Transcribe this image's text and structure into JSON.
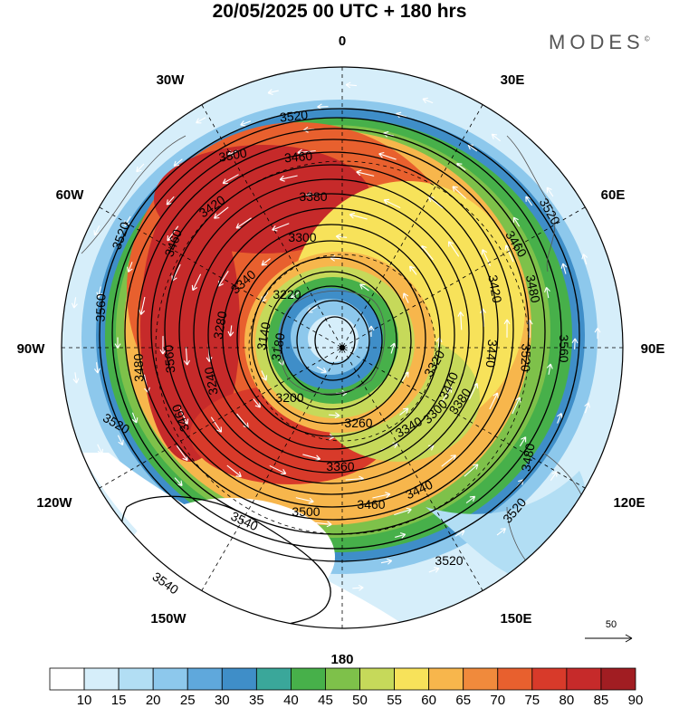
{
  "title": "20/05/2025  00 UTC  + 180 hrs",
  "brand": "MODES",
  "brand_mark": "©",
  "longitude_labels": [
    "0",
    "30E",
    "60E",
    "90E",
    "120E",
    "150E",
    "180",
    "150W",
    "120W",
    "90W",
    "60W",
    "30W"
  ],
  "contour_labels": [
    "3520",
    "3500",
    "3460",
    "3380",
    "3420",
    "3460",
    "3520",
    "3300",
    "3340",
    "3220",
    "3460",
    "3420",
    "3480",
    "3520",
    "3560",
    "3280",
    "3140",
    "3560",
    "3480",
    "3560",
    "3520",
    "3180",
    "3440",
    "3320",
    "3200",
    "3440",
    "3260",
    "3340",
    "3300",
    "3380",
    "3440",
    "3520",
    "3500",
    "3460",
    "3480",
    "3520",
    "3540",
    "3540",
    "3520",
    "3460",
    "3360",
    "3240"
  ],
  "colorbar": {
    "ticks": [
      "10",
      "15",
      "20",
      "25",
      "30",
      "35",
      "40",
      "45",
      "50",
      "55",
      "60",
      "65",
      "70",
      "75",
      "80",
      "85",
      "90"
    ],
    "colors": [
      "#ffffff",
      "#d6eefa",
      "#b2def4",
      "#8dc8ec",
      "#5fa8dc",
      "#3f8ec8",
      "#3aa79a",
      "#47b04a",
      "#7ec14a",
      "#c6d95a",
      "#f7e25a",
      "#f7b64c",
      "#f08a3c",
      "#e8602e",
      "#d83a2a",
      "#c62a2a",
      "#a11d22"
    ]
  },
  "reference_vector": {
    "label": "50"
  },
  "legend_colors": {
    "ocean_fill": "#ffffff",
    "contour": "#000000",
    "wind_vector": "#ffffff"
  }
}
